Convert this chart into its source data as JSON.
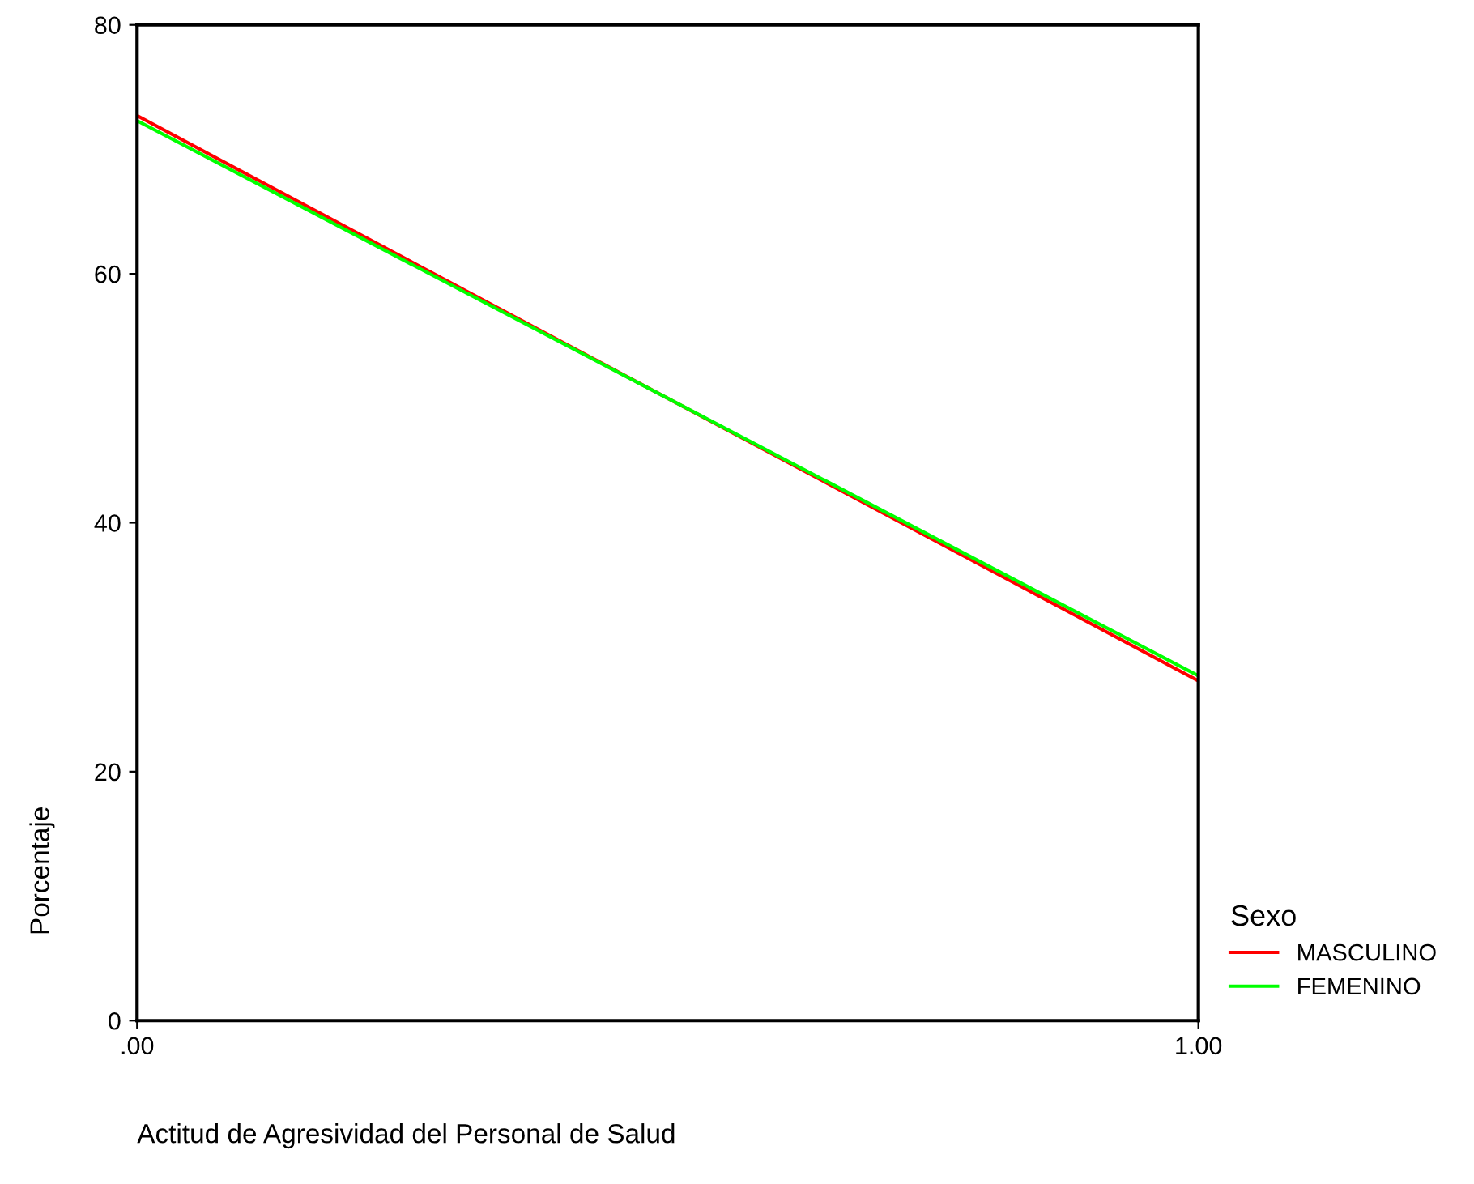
{
  "chart_data": {
    "type": "line",
    "xlabel": "Actitud de Agresividad del Personal de Salud",
    "ylabel": "Porcentaje",
    "legend_title": "Sexo",
    "x": [
      0,
      1
    ],
    "series": [
      {
        "name": "MASCULINO",
        "color": "#ff0000",
        "values": [
          72.7,
          27.3
        ]
      },
      {
        "name": "FEMENINO",
        "color": "#00ff00",
        "values": [
          72.3,
          27.7
        ]
      }
    ],
    "xlim": [
      0,
      1
    ],
    "xticks": [
      {
        "value": 0,
        "label": ".00"
      },
      {
        "value": 1,
        "label": "1.00"
      }
    ],
    "ylim": [
      0,
      80
    ],
    "yticks": [
      0,
      20,
      40,
      60,
      80
    ],
    "grid": false,
    "legend": "bottom right",
    "marker": "none",
    "line_style": "solid"
  }
}
